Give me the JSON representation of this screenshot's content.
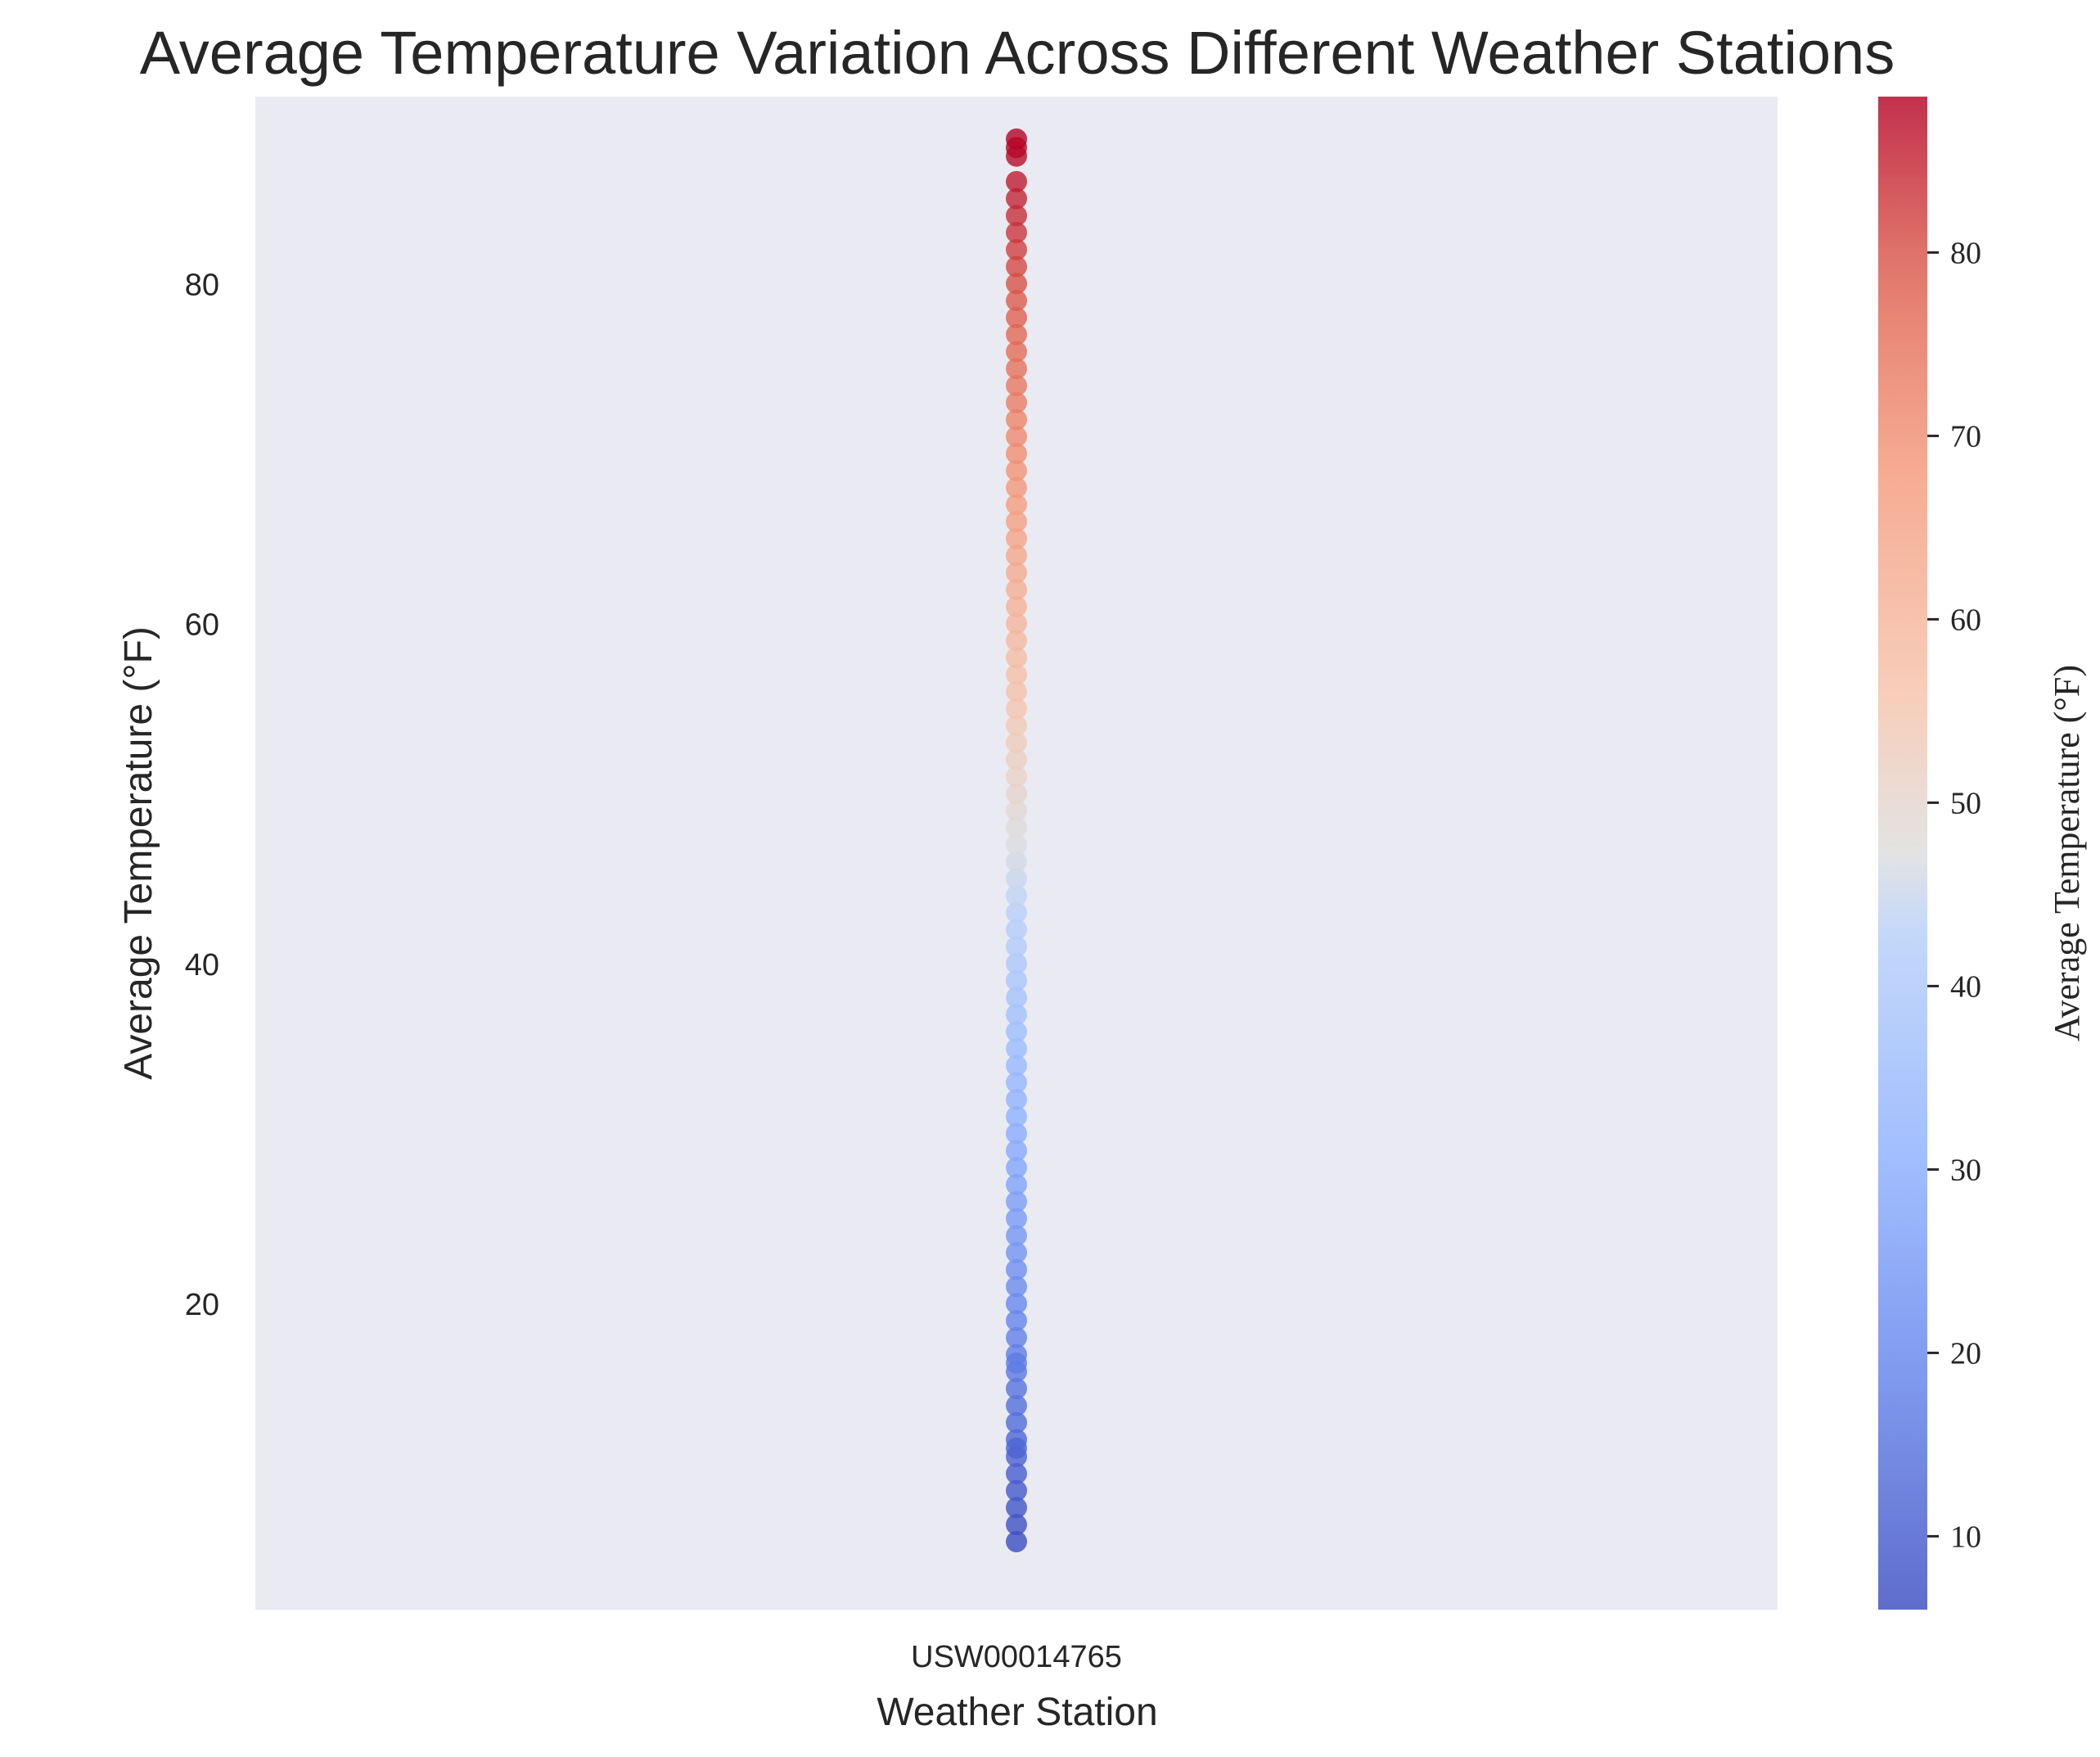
{
  "chart_data": {
    "type": "scatter",
    "title": "Average Temperature Variation Across Different Weather Stations",
    "xlabel": "Weather Station",
    "ylabel": "Average Temperature (°F)",
    "categories": [
      "USW00014765"
    ],
    "y_ticks": [
      20,
      40,
      60,
      80
    ],
    "ylim": [
      2,
      91
    ],
    "grid": false,
    "series": [
      {
        "category": "USW00014765",
        "values": [
          6,
          7,
          8,
          9,
          10,
          11,
          11.5,
          12,
          13,
          14,
          15,
          16,
          16.5,
          17,
          18,
          19,
          20,
          21,
          22,
          23,
          24,
          25,
          26,
          27,
          28,
          29,
          30,
          31,
          32,
          33,
          34,
          35,
          36,
          37,
          38,
          39,
          40,
          41,
          42,
          43,
          44,
          45,
          46,
          47,
          48,
          49,
          50,
          51,
          52,
          53,
          54,
          55,
          56,
          57,
          58,
          59,
          60,
          61,
          62,
          63,
          64,
          65,
          66,
          67,
          68,
          69,
          70,
          71,
          72,
          73,
          74,
          75,
          76,
          77,
          78,
          79,
          80,
          81,
          82,
          83,
          84,
          85,
          86,
          87.5,
          88,
          88.5
        ]
      }
    ],
    "colorbar": {
      "label": "Average Temperature (°F)",
      "colormap": "coolwarm",
      "range": [
        6,
        88.5
      ],
      "ticks": [
        10,
        20,
        30,
        40,
        50,
        60,
        70,
        80
      ]
    },
    "colors": {
      "plot_background": "#eaeaf2",
      "cold": "#3b4cc0",
      "neutral": "#dddddd",
      "hot": "#b40426"
    }
  }
}
